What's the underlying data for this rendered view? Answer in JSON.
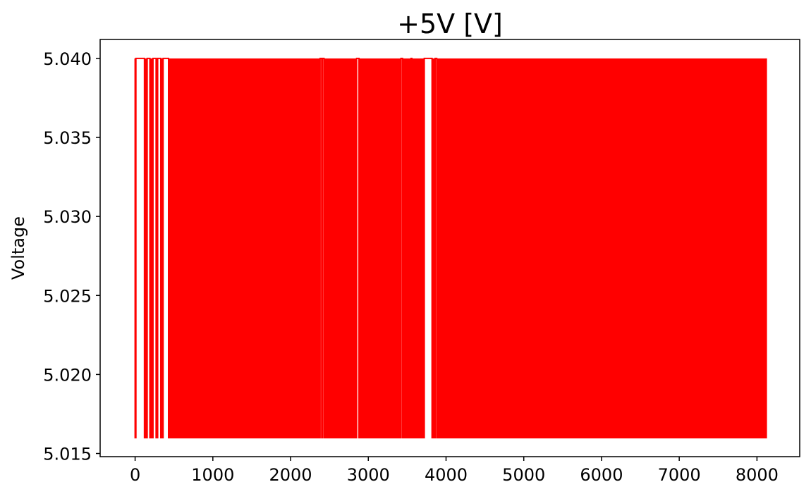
{
  "chart_data": {
    "type": "line",
    "title": "+5V [V]",
    "xlabel": "",
    "ylabel": "Voltage",
    "xlim": [
      -450,
      8550
    ],
    "ylim": [
      5.0148,
      5.0412
    ],
    "x_ticks": [
      {
        "value": 0,
        "label": "0"
      },
      {
        "value": 1000,
        "label": "1000"
      },
      {
        "value": 2000,
        "label": "2000"
      },
      {
        "value": 3000,
        "label": "3000"
      },
      {
        "value": 4000,
        "label": "4000"
      },
      {
        "value": 5000,
        "label": "5000"
      },
      {
        "value": 6000,
        "label": "6000"
      },
      {
        "value": 7000,
        "label": "7000"
      },
      {
        "value": 8000,
        "label": "8000"
      }
    ],
    "y_ticks": [
      {
        "value": 5.015,
        "label": "5.015"
      },
      {
        "value": 5.02,
        "label": "5.020"
      },
      {
        "value": 5.025,
        "label": "5.025"
      },
      {
        "value": 5.03,
        "label": "5.030"
      },
      {
        "value": 5.035,
        "label": "5.035"
      },
      {
        "value": 5.04,
        "label": "5.040"
      }
    ],
    "grid": false,
    "series": [
      {
        "color": "#ff0000",
        "low": 5.016,
        "high": 5.04,
        "x_range": [
          0,
          8120
        ],
        "active_intervals": [
          [
            0,
            10
          ],
          [
            120,
            155
          ],
          [
            190,
            230
          ],
          [
            270,
            290
          ],
          [
            330,
            360
          ],
          [
            430,
            2380
          ],
          [
            2400,
            2410
          ],
          [
            2430,
            2850
          ],
          [
            2880,
            3420
          ],
          [
            3440,
            3550
          ],
          [
            3560,
            3720
          ],
          [
            3820,
            3860
          ],
          [
            3880,
            8120
          ]
        ]
      }
    ]
  }
}
